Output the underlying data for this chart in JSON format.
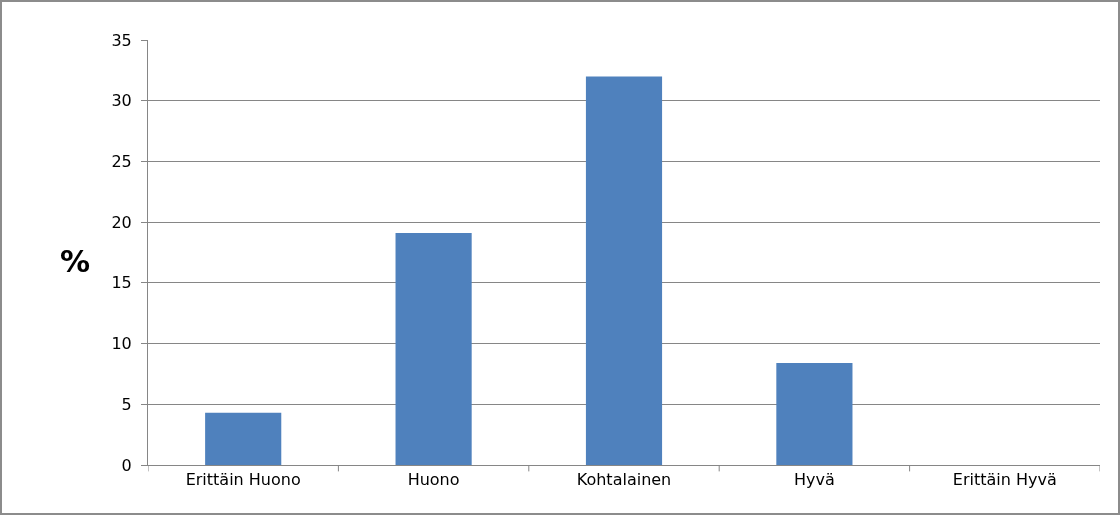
{
  "chart_data": {
    "type": "bar",
    "ylabel": "%",
    "categories": [
      "Erittäin Huono",
      "Huono",
      "Kohtalainen",
      "Hyvä",
      "Erittäin Hyvä"
    ],
    "values": [
      4.3,
      19.1,
      32,
      8.4,
      0
    ],
    "color": "#4f81bd",
    "ylim": [
      0,
      35
    ],
    "yticks": [
      0,
      5,
      10,
      15,
      20,
      25,
      30,
      35
    ],
    "grid": "y",
    "legend": false
  }
}
